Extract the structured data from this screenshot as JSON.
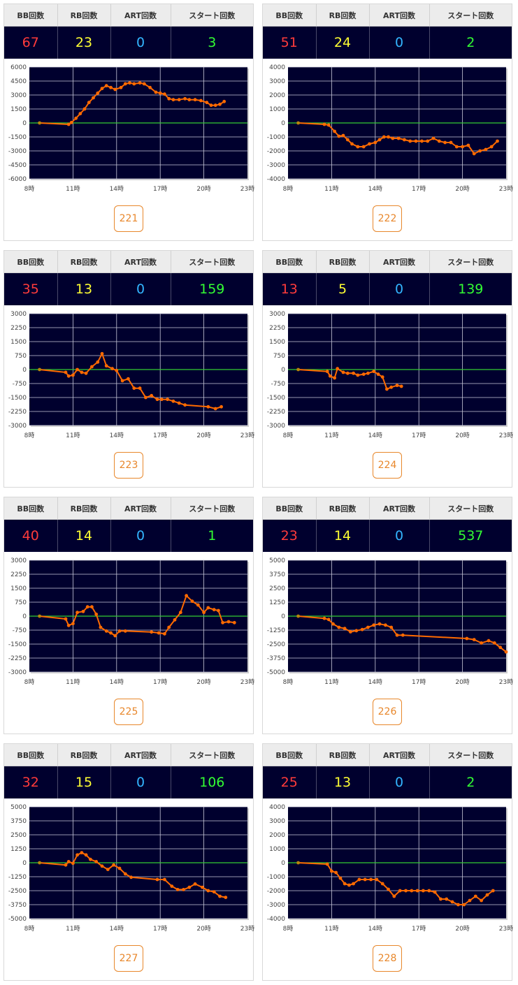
{
  "headers": {
    "bb": "BB回数",
    "rb": "RB回数",
    "art": "ART回数",
    "start": "スタート回数"
  },
  "colors": {
    "bb": "#ff3b3b",
    "rb": "#ffff33",
    "art": "#33b5ff",
    "start": "#33ff33",
    "plot_bg": "#00002e",
    "line": "#ff6a00",
    "zero_line": "#33cc33",
    "button": "#e8872b"
  },
  "machines": [
    {
      "number": "221",
      "bb": "67",
      "rb": "23",
      "art": "0",
      "start": "3"
    },
    {
      "number": "222",
      "bb": "51",
      "rb": "24",
      "art": "0",
      "start": "2"
    },
    {
      "number": "223",
      "bb": "35",
      "rb": "13",
      "art": "0",
      "start": "159"
    },
    {
      "number": "224",
      "bb": "13",
      "rb": "5",
      "art": "0",
      "start": "139"
    },
    {
      "number": "225",
      "bb": "40",
      "rb": "14",
      "art": "0",
      "start": "1"
    },
    {
      "number": "226",
      "bb": "23",
      "rb": "14",
      "art": "0",
      "start": "537"
    },
    {
      "number": "227",
      "bb": "32",
      "rb": "15",
      "art": "0",
      "start": "106"
    },
    {
      "number": "228",
      "bb": "25",
      "rb": "13",
      "art": "0",
      "start": "2"
    }
  ],
  "chart_data": [
    {
      "type": "line",
      "grid": true,
      "xlim": [
        8,
        23
      ],
      "ylim": [
        -6000,
        6000
      ],
      "xticks": [
        "8時",
        "11時",
        "14時",
        "17時",
        "20時",
        "23時"
      ],
      "yticks": [
        "6000",
        "4500",
        "3000",
        "1500",
        "0",
        "-1500",
        "-3000",
        "-4500",
        "-6000"
      ],
      "x": [
        8.7,
        10.7,
        10.9,
        11.2,
        11.5,
        11.8,
        12.1,
        12.4,
        12.7,
        13,
        13.3,
        13.6,
        13.9,
        14.3,
        14.6,
        14.9,
        15.2,
        15.6,
        15.9,
        16.3,
        16.7,
        17,
        17.3,
        17.6,
        17.9,
        18.3,
        18.7,
        19,
        19.4,
        19.8,
        20.2,
        20.5,
        20.8,
        21.1,
        21.4
      ],
      "y": [
        0,
        -150,
        50,
        500,
        1000,
        1500,
        2200,
        2700,
        3200,
        3700,
        4000,
        3800,
        3600,
        3800,
        4200,
        4300,
        4200,
        4300,
        4200,
        3800,
        3300,
        3200,
        3100,
        2600,
        2500,
        2500,
        2600,
        2500,
        2500,
        2400,
        2200,
        1900,
        1900,
        2000,
        2300
      ]
    },
    {
      "type": "line",
      "grid": true,
      "xlim": [
        8,
        23
      ],
      "ylim": [
        -4000,
        4000
      ],
      "xticks": [
        "8時",
        "11時",
        "14時",
        "17時",
        "20時",
        "23時"
      ],
      "yticks": [
        "4000",
        "3000",
        "2000",
        "1000",
        "0",
        "-1000",
        "-2000",
        "-3000",
        "-4000"
      ],
      "x": [
        8.7,
        10.5,
        10.8,
        11.2,
        11.5,
        11.8,
        12.1,
        12.4,
        12.8,
        13.2,
        13.6,
        14,
        14.3,
        14.6,
        14.9,
        15.2,
        15.6,
        16,
        16.4,
        16.8,
        17.2,
        17.6,
        18,
        18.4,
        18.8,
        19.2,
        19.6,
        20,
        20.4,
        20.8,
        21.2,
        21.6,
        22,
        22.4
      ],
      "y": [
        0,
        -100,
        -150,
        -600,
        -950,
        -900,
        -1200,
        -1500,
        -1700,
        -1700,
        -1500,
        -1400,
        -1200,
        -1000,
        -1000,
        -1100,
        -1100,
        -1200,
        -1300,
        -1300,
        -1300,
        -1300,
        -1100,
        -1300,
        -1400,
        -1400,
        -1700,
        -1700,
        -1600,
        -2200,
        -2000,
        -1900,
        -1700,
        -1300
      ]
    },
    {
      "type": "line",
      "grid": true,
      "xlim": [
        8,
        23
      ],
      "ylim": [
        -3000,
        3000
      ],
      "xticks": [
        "8時",
        "11時",
        "14時",
        "17時",
        "20時",
        "23時"
      ],
      "yticks": [
        "3000",
        "2250",
        "1500",
        "750",
        "0",
        "-750",
        "-1500",
        "-2250",
        "-3000"
      ],
      "x": [
        8.7,
        10.5,
        10.7,
        11,
        11.3,
        11.6,
        11.9,
        12.3,
        12.7,
        13,
        13.3,
        13.7,
        14,
        14.4,
        14.8,
        15.2,
        15.6,
        16,
        16.4,
        16.8,
        17.1,
        17.5,
        17.9,
        18.3,
        18.7,
        20.3,
        20.8,
        21.2
      ],
      "y": [
        0,
        -150,
        -350,
        -300,
        0,
        -150,
        -200,
        150,
        400,
        850,
        200,
        50,
        -50,
        -600,
        -500,
        -1000,
        -1000,
        -1500,
        -1400,
        -1600,
        -1600,
        -1600,
        -1700,
        -1800,
        -1900,
        -2000,
        -2100,
        -2000
      ],
      "xraw": [
        8.7,
        10.5,
        10.7,
        11,
        11.3,
        11.6,
        11.9,
        12.3,
        12.7,
        13,
        13.3,
        13.7,
        14,
        14.4,
        14.8,
        15.2,
        15.6,
        16,
        16.4,
        16.8,
        17.1,
        17.5,
        17.9,
        18.3,
        18.7,
        20.3,
        20.8,
        21.2
      ]
    },
    {
      "type": "line",
      "grid": true,
      "xlim": [
        8,
        23
      ],
      "ylim": [
        -3000,
        3000
      ],
      "xticks": [
        "8時",
        "11時",
        "14時",
        "17時",
        "20時",
        "23時"
      ],
      "yticks": [
        "3000",
        "2250",
        "1500",
        "750",
        "0",
        "-750",
        "-1500",
        "-2250",
        "-3000"
      ],
      "x": [
        8.7,
        10.7,
        10.9,
        11.2,
        11.4,
        11.8,
        12.1,
        12.5,
        12.8,
        13.2,
        13.5,
        13.9,
        14.2,
        14.5,
        14.8,
        15.1,
        15.5,
        15.8
      ],
      "y": [
        0,
        -100,
        -350,
        -450,
        50,
        -150,
        -200,
        -200,
        -300,
        -250,
        -200,
        -100,
        -250,
        -400,
        -1050,
        -950,
        -850,
        -900
      ]
    },
    {
      "type": "line",
      "grid": true,
      "xlim": [
        8,
        23
      ],
      "ylim": [
        -3000,
        3000
      ],
      "xticks": [
        "8時",
        "11時",
        "14時",
        "17時",
        "20時",
        "23時"
      ],
      "yticks": [
        "3000",
        "2250",
        "1500",
        "750",
        "0",
        "-750",
        "-1500",
        "-2250",
        "-3000"
      ],
      "x": [
        8.7,
        10.5,
        10.7,
        11,
        11.3,
        11.7,
        12,
        12.3,
        12.6,
        12.9,
        13.3,
        13.6,
        13.9,
        14.2,
        14.6,
        16.4,
        16.9,
        17.3,
        17.6,
        18,
        18.4,
        18.8,
        19.2,
        19.6,
        20,
        20.3,
        20.7,
        21,
        21.3,
        21.7,
        22.1
      ],
      "y": [
        0,
        -150,
        -500,
        -400,
        200,
        250,
        500,
        500,
        100,
        -600,
        -800,
        -900,
        -1050,
        -800,
        -800,
        -850,
        -900,
        -950,
        -600,
        -200,
        200,
        1100,
        800,
        600,
        200,
        450,
        350,
        300,
        -350,
        -300,
        -350
      ]
    },
    {
      "type": "line",
      "grid": true,
      "xlim": [
        8,
        23
      ],
      "ylim": [
        -5000,
        5000
      ],
      "xticks": [
        "8時",
        "11時",
        "14時",
        "17時",
        "20時",
        "23時"
      ],
      "yticks": [
        "5000",
        "3750",
        "2500",
        "1250",
        "0",
        "-1250",
        "-2500",
        "-3750",
        "-5000"
      ],
      "x": [
        8.7,
        10.5,
        10.8,
        11.1,
        11.5,
        11.9,
        12.3,
        12.7,
        13.1,
        13.5,
        13.9,
        14.3,
        14.7,
        15.1,
        15.5,
        15.9,
        20.3,
        20.8,
        21.3,
        21.8,
        22.2,
        22.6,
        23
      ],
      "y": [
        0,
        -200,
        -300,
        -700,
        -1000,
        -1100,
        -1400,
        -1300,
        -1200,
        -1000,
        -800,
        -700,
        -800,
        -1000,
        -1700,
        -1700,
        -2000,
        -2100,
        -2400,
        -2200,
        -2400,
        -2800,
        -3200
      ]
    },
    {
      "type": "line",
      "grid": true,
      "xlim": [
        8,
        23
      ],
      "ylim": [
        -5000,
        5000
      ],
      "xticks": [
        "8時",
        "11時",
        "14時",
        "17時",
        "20時",
        "23時"
      ],
      "yticks": [
        "5000",
        "3750",
        "2500",
        "1250",
        "0",
        "-1250",
        "-2500",
        "-3750",
        "-5000"
      ],
      "x": [
        8.7,
        10.5,
        10.7,
        11,
        11.3,
        11.6,
        11.9,
        12.2,
        12.6,
        13,
        13.4,
        13.8,
        14.2,
        14.6,
        15,
        16.8,
        17.3,
        17.8,
        18.2,
        18.6,
        19,
        19.4,
        19.9,
        20.3,
        20.7,
        21.1,
        21.5
      ],
      "y": [
        0,
        -200,
        100,
        -50,
        700,
        900,
        700,
        300,
        100,
        -300,
        -600,
        -200,
        -500,
        -1000,
        -1300,
        -1500,
        -1500,
        -2100,
        -2400,
        -2400,
        -2200,
        -1900,
        -2200,
        -2500,
        -2600,
        -3000,
        -3100
      ]
    },
    {
      "type": "line",
      "grid": true,
      "xlim": [
        8,
        23
      ],
      "ylim": [
        -4000,
        4000
      ],
      "xticks": [
        "8時",
        "11時",
        "14時",
        "17時",
        "20時",
        "23時"
      ],
      "yticks": [
        "4000",
        "3000",
        "2000",
        "1000",
        "0",
        "-1000",
        "-2000",
        "-3000",
        "-4000"
      ],
      "x": [
        8.7,
        10.7,
        11,
        11.3,
        11.6,
        11.9,
        12.2,
        12.5,
        12.9,
        13.3,
        13.7,
        14.1,
        14.5,
        14.9,
        15.3,
        15.7,
        16.1,
        16.5,
        16.9,
        17.3,
        17.7,
        18.1,
        18.5,
        18.9,
        19.3,
        19.7,
        20.1,
        20.5,
        20.9,
        21.3,
        21.7,
        22.1
      ],
      "y": [
        0,
        -100,
        -600,
        -700,
        -1100,
        -1500,
        -1600,
        -1500,
        -1200,
        -1200,
        -1200,
        -1200,
        -1500,
        -1900,
        -2400,
        -2000,
        -2000,
        -2000,
        -2000,
        -2000,
        -2000,
        -2100,
        -2600,
        -2600,
        -2800,
        -3000,
        -3000,
        -2700,
        -2400,
        -2700,
        -2300,
        -2000
      ]
    }
  ]
}
